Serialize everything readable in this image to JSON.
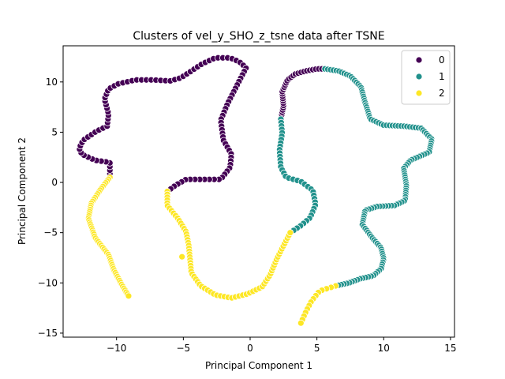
{
  "chart_data": {
    "type": "scatter",
    "title": "Clusters of vel_y_SHO_z_tsne data after TSNE",
    "xlabel": "Principal Component 1",
    "ylabel": "Principal Component 2",
    "xlim": [
      -14.0,
      15.3
    ],
    "ylim": [
      -15.4,
      13.6
    ],
    "xticks": [
      -10,
      -5,
      0,
      5,
      10,
      15
    ],
    "yticks": [
      -15,
      -10,
      -5,
      0,
      5,
      10
    ],
    "grid": false,
    "legend_placement": "top-right",
    "colors": {
      "0": "#440154",
      "1": "#21918c",
      "2": "#fde725"
    },
    "series": [
      {
        "name": "0",
        "waypoints": [
          [
            -10.5,
            0.5
          ],
          [
            -10.5,
            2.0
          ],
          [
            -11.6,
            2.2
          ],
          [
            -12.6,
            2.8
          ],
          [
            -12.8,
            3.4
          ],
          [
            -12.5,
            4.2
          ],
          [
            -11.5,
            5.1
          ],
          [
            -10.7,
            5.6
          ],
          [
            -10.6,
            6.8
          ],
          [
            -10.9,
            8.3
          ],
          [
            -10.6,
            9.3
          ],
          [
            -9.9,
            9.8
          ],
          [
            -8.6,
            10.2
          ],
          [
            -7.2,
            10.2
          ],
          [
            -6.0,
            10.1
          ],
          [
            -5.2,
            10.4
          ],
          [
            -4.5,
            11.0
          ],
          [
            -3.6,
            11.8
          ],
          [
            -2.6,
            12.4
          ],
          [
            -1.5,
            12.4
          ],
          [
            -0.8,
            12.0
          ],
          [
            -0.3,
            11.4
          ],
          [
            -0.7,
            10.4
          ],
          [
            -1.2,
            9.1
          ],
          [
            -1.7,
            7.8
          ],
          [
            -2.2,
            6.2
          ],
          [
            -2.0,
            4.2
          ],
          [
            -1.4,
            2.8
          ],
          [
            -1.5,
            1.5
          ],
          [
            -2.2,
            0.3
          ],
          [
            -3.5,
            0.3
          ],
          [
            -4.8,
            0.3
          ],
          [
            -5.6,
            -0.3
          ],
          [
            -6.2,
            -0.9
          ]
        ],
        "count": 110,
        "extra": []
      },
      {
        "name": "0",
        "waypoints": [
          [
            2.3,
            6.3
          ],
          [
            2.5,
            7.6
          ],
          [
            2.4,
            9.0
          ],
          [
            2.8,
            10.2
          ],
          [
            3.4,
            10.8
          ],
          [
            4.2,
            11.1
          ],
          [
            5.0,
            11.3
          ],
          [
            5.6,
            11.3
          ]
        ],
        "count": 32,
        "extra": []
      },
      {
        "name": "1",
        "waypoints": [
          [
            5.6,
            11.3
          ],
          [
            6.6,
            11.1
          ],
          [
            7.5,
            10.6
          ],
          [
            8.3,
            9.5
          ],
          [
            8.6,
            8.0
          ],
          [
            9.0,
            6.3
          ],
          [
            10.0,
            5.7
          ],
          [
            11.5,
            5.6
          ],
          [
            12.8,
            5.4
          ],
          [
            13.6,
            4.3
          ],
          [
            13.4,
            3.0
          ],
          [
            12.0,
            2.2
          ],
          [
            11.5,
            1.4
          ],
          [
            11.7,
            -0.3
          ],
          [
            11.6,
            -1.8
          ],
          [
            10.8,
            -2.3
          ],
          [
            9.5,
            -2.4
          ],
          [
            8.6,
            -2.8
          ],
          [
            8.4,
            -4.2
          ],
          [
            9.2,
            -5.6
          ],
          [
            9.8,
            -6.5
          ],
          [
            10.0,
            -7.6
          ],
          [
            9.8,
            -8.6
          ],
          [
            9.2,
            -9.3
          ],
          [
            8.2,
            -9.6
          ],
          [
            7.4,
            -10.0
          ],
          [
            6.4,
            -10.3
          ]
        ],
        "count": 150,
        "extra": []
      },
      {
        "name": "1",
        "waypoints": [
          [
            2.3,
            6.3
          ],
          [
            2.4,
            4.9
          ],
          [
            2.2,
            3.2
          ],
          [
            2.3,
            1.5
          ],
          [
            2.7,
            0.5
          ],
          [
            3.8,
            0.1
          ],
          [
            4.7,
            -0.8
          ],
          [
            4.9,
            -2.2
          ],
          [
            4.5,
            -3.5
          ],
          [
            3.8,
            -4.3
          ],
          [
            3.0,
            -5.0
          ]
        ],
        "count": 40,
        "extra": []
      },
      {
        "name": "2",
        "waypoints": [
          [
            -10.5,
            0.5
          ],
          [
            -11.2,
            -0.7
          ],
          [
            -11.9,
            -2.1
          ],
          [
            -12.1,
            -3.6
          ],
          [
            -11.6,
            -5.5
          ],
          [
            -10.6,
            -7.2
          ],
          [
            -10.2,
            -8.7
          ],
          [
            -9.6,
            -10.2
          ],
          [
            -9.1,
            -11.3
          ]
        ],
        "count": 62,
        "extra": []
      },
      {
        "name": "2",
        "waypoints": [
          [
            -6.2,
            -0.9
          ],
          [
            -6.2,
            -2.3
          ],
          [
            -5.4,
            -3.6
          ],
          [
            -4.8,
            -4.9
          ],
          [
            -4.6,
            -6.2
          ],
          [
            -4.5,
            -7.6
          ],
          [
            -4.4,
            -9.0
          ],
          [
            -3.7,
            -10.3
          ],
          [
            -2.6,
            -11.2
          ],
          [
            -1.4,
            -11.5
          ],
          [
            -0.2,
            -11.1
          ],
          [
            0.9,
            -10.4
          ],
          [
            1.5,
            -9.2
          ],
          [
            2.0,
            -7.6
          ],
          [
            2.5,
            -6.3
          ],
          [
            3.0,
            -5.0
          ]
        ],
        "count": 74,
        "extra": [
          [
            -5.1,
            -7.4
          ]
        ]
      },
      {
        "name": "2",
        "waypoints": [
          [
            6.4,
            -10.3
          ],
          [
            5.2,
            -10.8
          ],
          [
            4.6,
            -11.8
          ],
          [
            4.2,
            -12.8
          ],
          [
            3.8,
            -14.0
          ]
        ],
        "count": 14,
        "extra": []
      }
    ],
    "legend": [
      "0",
      "1",
      "2"
    ]
  }
}
